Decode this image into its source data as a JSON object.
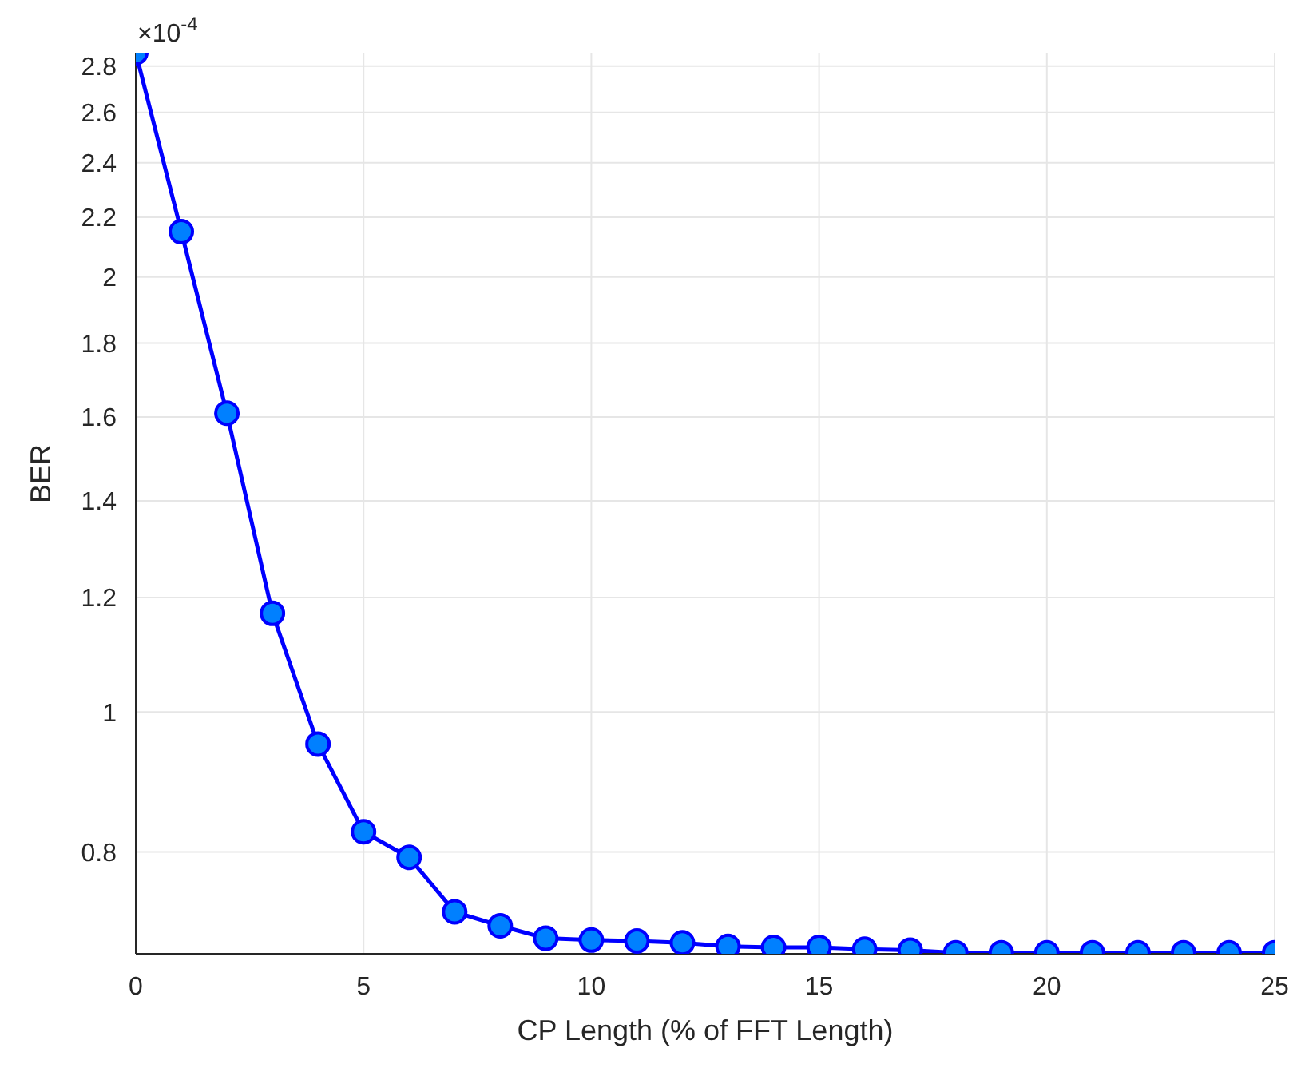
{
  "chart_data": {
    "type": "line",
    "xlabel": "CP Length (% of FFT Length)",
    "ylabel": "BER",
    "annotations": [
      "×10$^{-4}$"
    ],
    "x": [
      0,
      1,
      2,
      3,
      4,
      5,
      6,
      7,
      8,
      9,
      10,
      11,
      12,
      13,
      14,
      15,
      16,
      17,
      18,
      19,
      20,
      21,
      22,
      23,
      24,
      25
    ],
    "series": [
      {
        "color": "#0000ff",
        "values": [
          2.86,
          2.15,
          1.61,
          1.17,
          0.95,
          0.826,
          0.793,
          0.727,
          0.711,
          0.697,
          0.695,
          0.694,
          0.692,
          0.688,
          0.687,
          0.687,
          0.685,
          0.684,
          0.681,
          0.681,
          0.681,
          0.681,
          0.681,
          0.681,
          0.681,
          0.681
        ]
      }
    ],
    "xlim": [
      0,
      25
    ],
    "xticks": [
      0,
      5,
      10,
      15,
      20,
      25
    ],
    "ylim": [
      0.68,
      2.86
    ],
    "yticks": [
      0.8,
      1,
      1.2,
      1.4,
      1.6,
      1.8,
      2,
      2.2,
      2.4,
      2.6,
      2.8
    ],
    "log": "y",
    "grid": true,
    "marker": "circle",
    "line_style": "solid"
  }
}
